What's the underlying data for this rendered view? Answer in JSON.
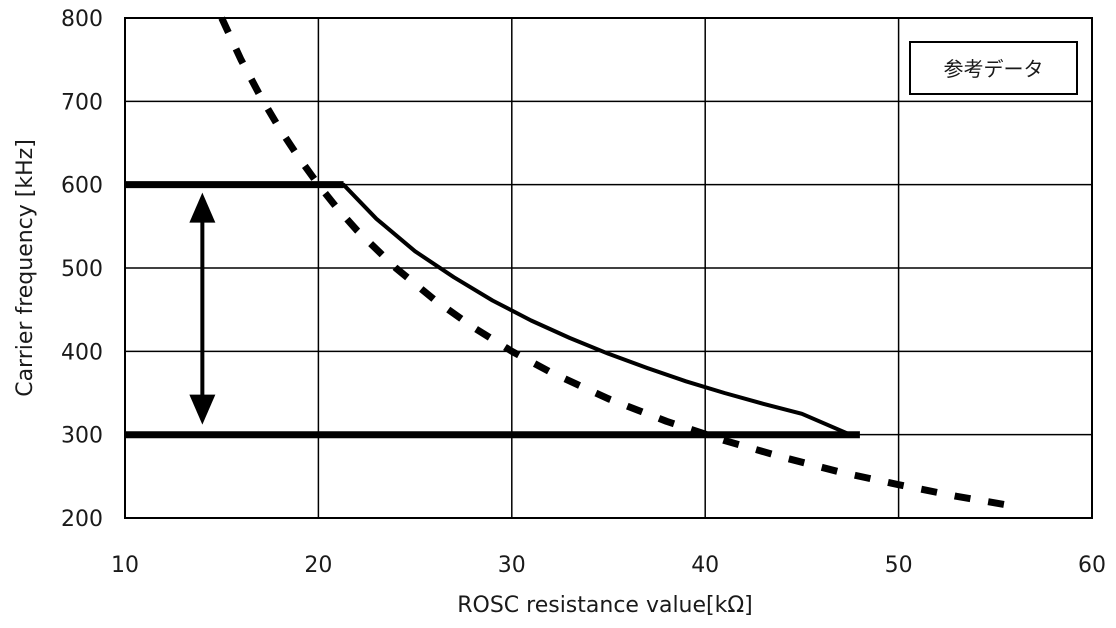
{
  "chart_data": {
    "type": "line",
    "title": "",
    "xlabel": "ROSC resistance value[kΩ]",
    "ylabel": "Carrier frequency [kHz]",
    "xlim": [
      10,
      60
    ],
    "ylim": [
      200,
      800
    ],
    "x_ticks": [
      10,
      20,
      30,
      40,
      50,
      60
    ],
    "y_ticks": [
      200,
      300,
      400,
      500,
      600,
      700,
      800
    ],
    "grid": true,
    "legend_box_text": "参考データ",
    "legend_placement": "top-right",
    "series": [
      {
        "style": "dashed",
        "x": [
          15,
          16,
          17,
          18,
          19,
          20,
          21,
          22,
          24,
          26,
          28,
          30,
          32,
          35,
          38,
          41,
          44,
          47,
          50,
          53,
          56
        ],
        "y": [
          800,
          750,
          706,
          667,
          632,
          600,
          571,
          545,
          500,
          462,
          429,
          400,
          375,
          343,
          316,
          293,
          273,
          255,
          240,
          226,
          214
        ]
      },
      {
        "style": "solid",
        "x": [
          10,
          21.3,
          23,
          25,
          27,
          29,
          31,
          33,
          35,
          37,
          39,
          41,
          43,
          45,
          47.5
        ],
        "y": [
          600,
          600,
          559,
          520,
          489,
          461,
          437,
          416,
          397,
          380,
          364,
          350,
          337,
          325,
          300
        ]
      },
      {
        "style": "solid",
        "x": [
          10,
          48
        ],
        "y": [
          300,
          300
        ]
      }
    ],
    "annotations": [
      {
        "type": "double-arrow",
        "x": 14,
        "y_from": 600,
        "y_to": 300
      }
    ]
  }
}
